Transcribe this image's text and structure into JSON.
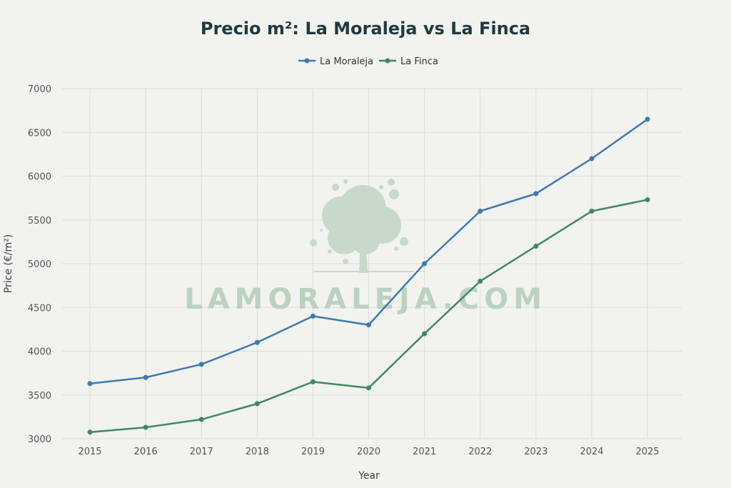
{
  "chart_data": {
    "type": "line",
    "title": "Precio m²: La Moraleja vs La Finca",
    "xlabel": "Year",
    "ylabel": "Price (€/m²)",
    "x": [
      "2015",
      "2016",
      "2017",
      "2018",
      "2019",
      "2020",
      "2021",
      "2022",
      "2023",
      "2024",
      "2025"
    ],
    "ylim": [
      3000,
      7000
    ],
    "yticks": [
      "3000",
      "3500",
      "4000",
      "4500",
      "5000",
      "5500",
      "6000",
      "6500",
      "7000"
    ],
    "grid": true,
    "legend_position": "top-center",
    "series": [
      {
        "name": "La Moraleja",
        "color": "#3a7bb3",
        "values": [
          3630,
          3700,
          3850,
          4100,
          4400,
          4300,
          5000,
          5600,
          5800,
          6200,
          6650
        ]
      },
      {
        "name": "La Finca",
        "color": "#3d8a5f",
        "values": [
          3075,
          3130,
          3220,
          3400,
          3650,
          3580,
          4200,
          4800,
          5200,
          5600,
          5730
        ]
      }
    ]
  },
  "watermark": {
    "text": "LAMORALEJA.COM",
    "icon": "tree-icon",
    "color": "#bcd2c1"
  }
}
